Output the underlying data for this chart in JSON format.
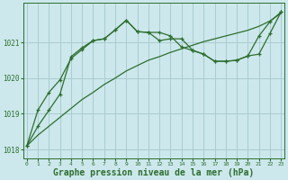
{
  "background_color": "#cce8ec",
  "grid_color": "#aaccd0",
  "line_color": "#2d6e2d",
  "xlabel": "Graphe pression niveau de la mer (hPa)",
  "xlabel_fontsize": 7.0,
  "ylim": [
    1017.75,
    1022.1
  ],
  "xlim": [
    -0.3,
    23.3
  ],
  "yticks": [
    1018,
    1019,
    1020,
    1021
  ],
  "xticks": [
    0,
    1,
    2,
    3,
    4,
    5,
    6,
    7,
    8,
    9,
    10,
    11,
    12,
    13,
    14,
    15,
    16,
    17,
    18,
    19,
    20,
    21,
    22,
    23
  ],
  "series1_x": [
    0,
    1,
    2,
    3,
    4,
    5,
    6,
    7,
    8,
    9,
    10,
    11,
    12,
    13,
    14,
    15,
    16,
    17,
    18,
    19,
    20,
    21,
    22,
    23
  ],
  "series1_y": [
    1018.1,
    1018.4,
    1018.65,
    1018.9,
    1019.15,
    1019.4,
    1019.6,
    1019.82,
    1020.0,
    1020.2,
    1020.35,
    1020.5,
    1020.6,
    1020.72,
    1020.82,
    1020.92,
    1021.02,
    1021.1,
    1021.18,
    1021.26,
    1021.34,
    1021.45,
    1021.6,
    1021.82
  ],
  "series2_x": [
    0,
    1,
    2,
    3,
    4,
    5,
    6,
    7,
    8,
    9,
    10,
    11,
    12,
    13,
    14,
    15,
    16,
    17,
    18,
    19,
    20,
    21,
    22,
    23
  ],
  "series2_y": [
    1018.1,
    1019.1,
    1019.6,
    1019.95,
    1020.55,
    1020.8,
    1021.05,
    1021.1,
    1021.35,
    1021.62,
    1021.3,
    1021.28,
    1021.28,
    1021.18,
    1020.87,
    1020.77,
    1020.67,
    1020.47,
    1020.47,
    1020.5,
    1020.62,
    1021.18,
    1021.58,
    1021.85
  ],
  "series3_x": [
    0,
    1,
    2,
    3,
    4,
    5,
    6,
    7,
    8,
    9,
    10,
    11,
    12,
    13,
    14,
    15,
    16,
    17,
    18,
    19,
    20,
    21,
    22,
    23
  ],
  "series3_y": [
    1018.1,
    1018.65,
    1019.1,
    1019.55,
    1020.6,
    1020.85,
    1021.05,
    1021.1,
    1021.35,
    1021.62,
    1021.3,
    1021.28,
    1021.05,
    1021.1,
    1021.1,
    1020.78,
    1020.67,
    1020.47,
    1020.47,
    1020.5,
    1020.62,
    1020.67,
    1021.25,
    1021.85
  ]
}
